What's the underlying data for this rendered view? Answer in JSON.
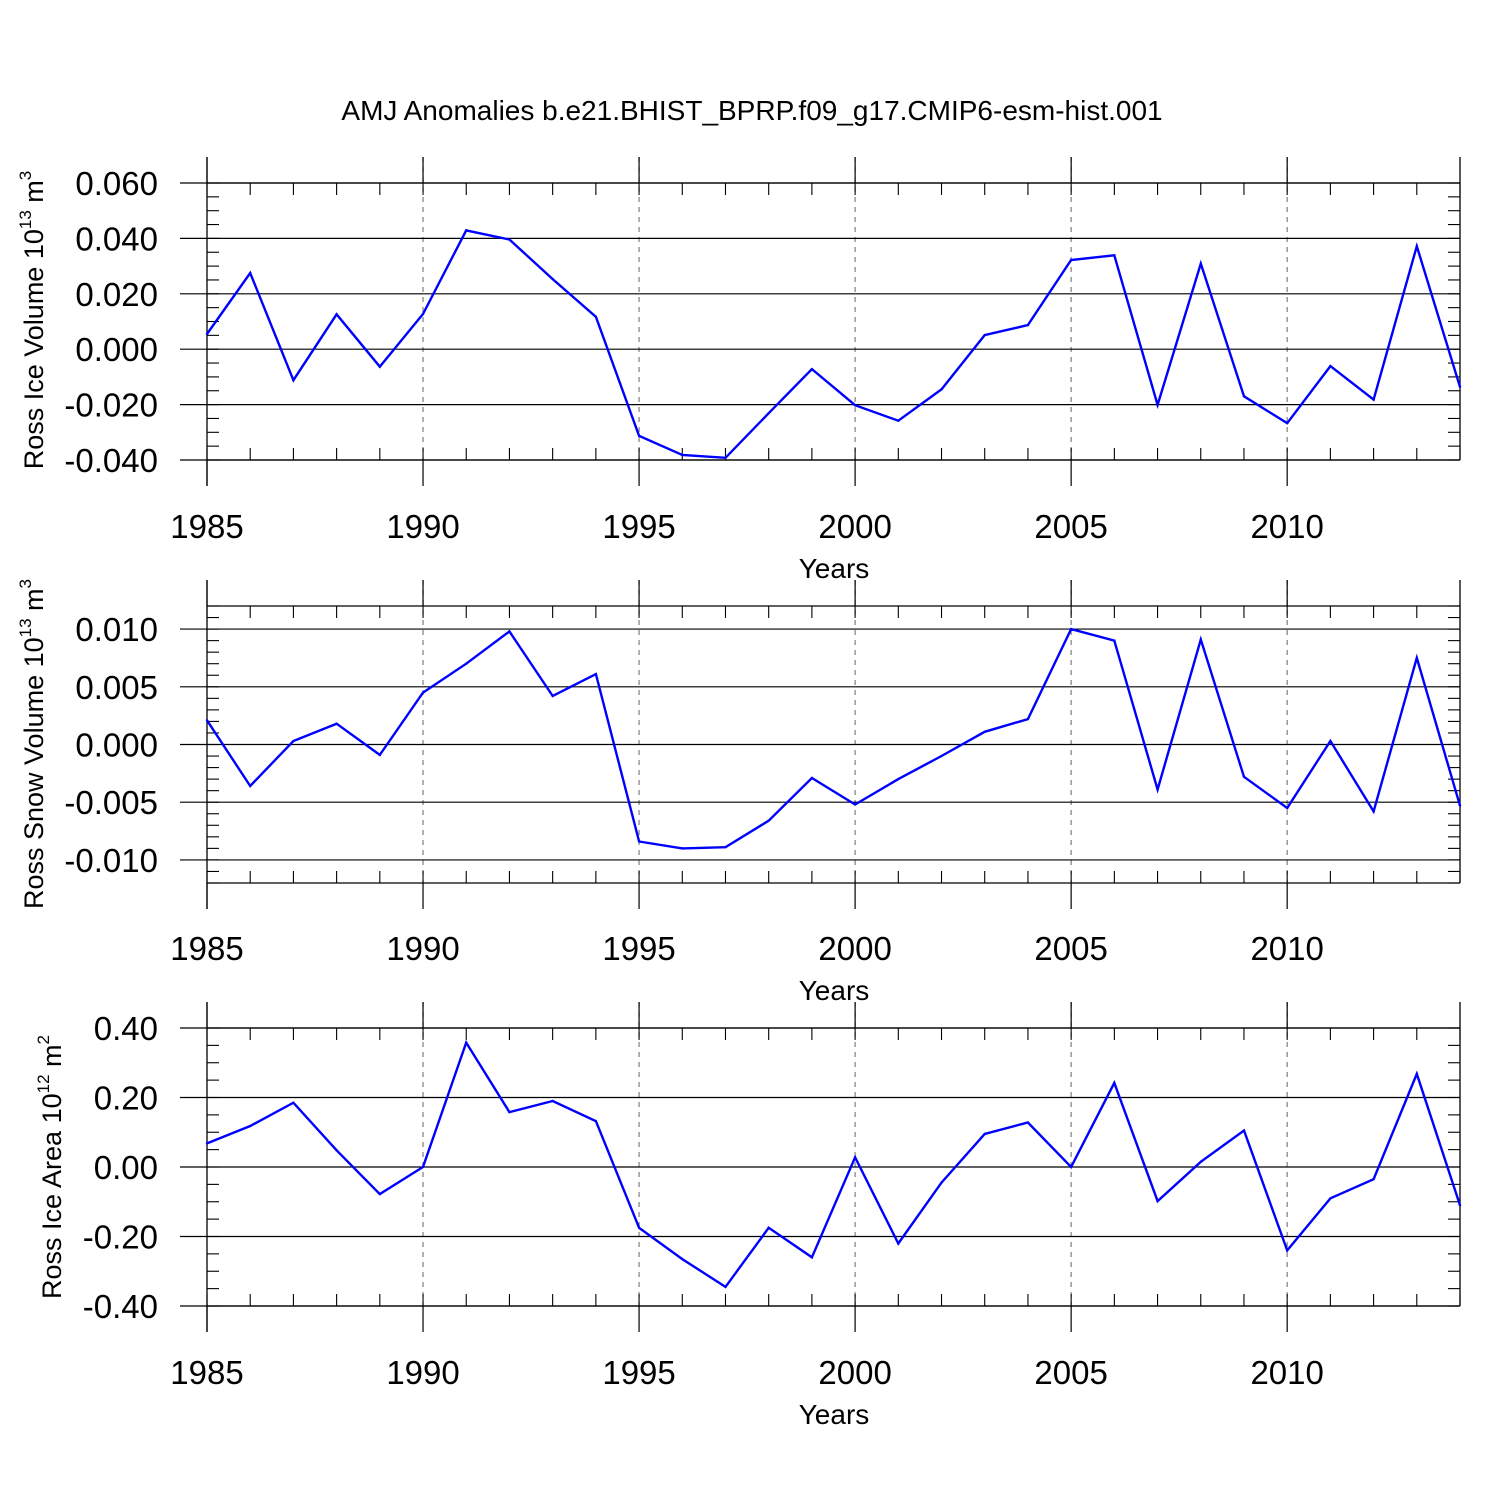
{
  "title": "AMJ Anomalies b.e21.BHIST_BPRP.f09_g17.CMIP6-esm-hist.001",
  "colors": {
    "line": "#0000ff",
    "axis": "#000000",
    "gridline": "#888888"
  },
  "chart_data": [
    {
      "type": "line",
      "title": "AMJ Anomalies b.e21.BHIST_BPRP.f09_g17.CMIP6-esm-hist.001",
      "ylabel": {
        "text": "Ross Ice Volume 10",
        "sup": "13",
        "unit_main": " m",
        "unit_sup": "3"
      },
      "xlabel": "Years",
      "xlim": [
        1985,
        2014
      ],
      "ylim": [
        -0.04,
        0.06
      ],
      "x_ticks": [
        1985,
        1990,
        1995,
        2000,
        2005,
        2010
      ],
      "x_tick_labels": [
        "1985",
        "1990",
        "1995",
        "2000",
        "2005",
        "2010"
      ],
      "y_ticks": [
        -0.04,
        -0.02,
        0.0,
        0.02,
        0.04,
        0.06
      ],
      "y_tick_labels": [
        "-0.040",
        "-0.020",
        "0.000",
        "0.020",
        "0.040",
        "0.060"
      ],
      "y_minor_step": 0.005,
      "x_gridlines": [
        1990,
        1995,
        2000,
        2005,
        2010
      ],
      "y_axis_top": 0.0695,
      "series": [
        {
          "name": "Ross Ice Volume anomaly",
          "x": [
            1985,
            1986,
            1987,
            1988,
            1989,
            1990,
            1991,
            1992,
            1993,
            1994,
            1995,
            1996,
            1997,
            1998,
            1999,
            2000,
            2001,
            2002,
            2003,
            2004,
            2005,
            2006,
            2007,
            2008,
            2009,
            2010,
            2011,
            2012,
            2013,
            2014
          ],
          "values": [
            0.0055,
            0.0275,
            -0.0112,
            0.0126,
            -0.0063,
            0.0127,
            0.0429,
            0.0396,
            0.0253,
            0.0117,
            -0.0313,
            -0.0382,
            -0.0392,
            -0.0231,
            -0.0072,
            -0.0202,
            -0.0258,
            -0.0145,
            0.0051,
            0.0087,
            0.0322,
            0.0339,
            -0.0201,
            0.0309,
            -0.017,
            -0.0267,
            -0.0061,
            -0.0182,
            0.0372,
            -0.0136
          ]
        }
      ]
    },
    {
      "type": "line",
      "ylabel": {
        "text": "Ross Snow Volume 10",
        "sup": "13",
        "unit_main": " m",
        "unit_sup": "3"
      },
      "xlabel": "Years",
      "xlim": [
        1985,
        2014
      ],
      "ylim": [
        -0.012,
        0.012
      ],
      "x_ticks": [
        1985,
        1990,
        1995,
        2000,
        2005,
        2010
      ],
      "x_tick_labels": [
        "1985",
        "1990",
        "1995",
        "2000",
        "2005",
        "2010"
      ],
      "y_ticks": [
        -0.01,
        -0.005,
        0.0,
        0.005,
        0.01
      ],
      "y_tick_labels": [
        "-0.010",
        "-0.005",
        "0.000",
        "0.005",
        "0.010"
      ],
      "y_minor_step": 0.001,
      "x_gridlines": [
        1990,
        1995,
        2000,
        2005,
        2010
      ],
      "y_axis_top": 0.012,
      "series": [
        {
          "name": "Ross Snow Volume anomaly",
          "x": [
            1985,
            1986,
            1987,
            1988,
            1989,
            1990,
            1991,
            1992,
            1993,
            1994,
            1995,
            1996,
            1997,
            1998,
            1999,
            2000,
            2001,
            2002,
            2003,
            2004,
            2005,
            2006,
            2007,
            2008,
            2009,
            2010,
            2011,
            2012,
            2013,
            2014
          ],
          "values": [
            0.0021,
            -0.0036,
            0.0003,
            0.0018,
            -0.0009,
            0.0045,
            0.007,
            0.0098,
            0.0042,
            0.0061,
            -0.0084,
            -0.009,
            -0.0089,
            -0.0066,
            -0.0029,
            -0.0052,
            -0.003,
            -0.001,
            0.0011,
            0.0022,
            0.01,
            0.009,
            -0.0039,
            0.0091,
            -0.0028,
            -0.0055,
            0.0003,
            -0.0058,
            0.0075,
            -0.0053
          ]
        }
      ]
    },
    {
      "type": "line",
      "ylabel": {
        "text": "Ross Ice Area 10",
        "sup": "12",
        "unit_main": " m",
        "unit_sup": "2"
      },
      "xlabel": "Years",
      "xlim": [
        1985,
        2014
      ],
      "ylim": [
        -0.4,
        0.4
      ],
      "x_ticks": [
        1985,
        1990,
        1995,
        2000,
        2005,
        2010
      ],
      "x_tick_labels": [
        "1985",
        "1990",
        "1995",
        "2000",
        "2005",
        "2010"
      ],
      "y_ticks": [
        -0.4,
        -0.2,
        0.0,
        0.2,
        0.4
      ],
      "y_tick_labels": [
        "-0.40",
        "-0.20",
        "0.00",
        "0.20",
        "0.40"
      ],
      "y_minor_step": 0.05,
      "x_gridlines": [
        1990,
        1995,
        2000,
        2005,
        2010
      ],
      "y_axis_top": 0.474,
      "series": [
        {
          "name": "Ross Ice Area anomaly",
          "x": [
            1985,
            1986,
            1987,
            1988,
            1989,
            1990,
            1991,
            1992,
            1993,
            1994,
            1995,
            1996,
            1997,
            1998,
            1999,
            2000,
            2001,
            2002,
            2003,
            2004,
            2005,
            2006,
            2007,
            2008,
            2009,
            2010,
            2011,
            2012,
            2013,
            2014
          ],
          "values": [
            0.068,
            0.118,
            0.185,
            0.048,
            -0.078,
            0.0,
            0.358,
            0.158,
            0.19,
            0.132,
            -0.175,
            -0.265,
            -0.345,
            -0.175,
            -0.26,
            0.028,
            -0.22,
            -0.045,
            0.095,
            0.128,
            0.0,
            0.242,
            -0.098,
            0.015,
            0.105,
            -0.24,
            -0.09,
            -0.035,
            0.268,
            -0.11
          ]
        }
      ]
    }
  ]
}
